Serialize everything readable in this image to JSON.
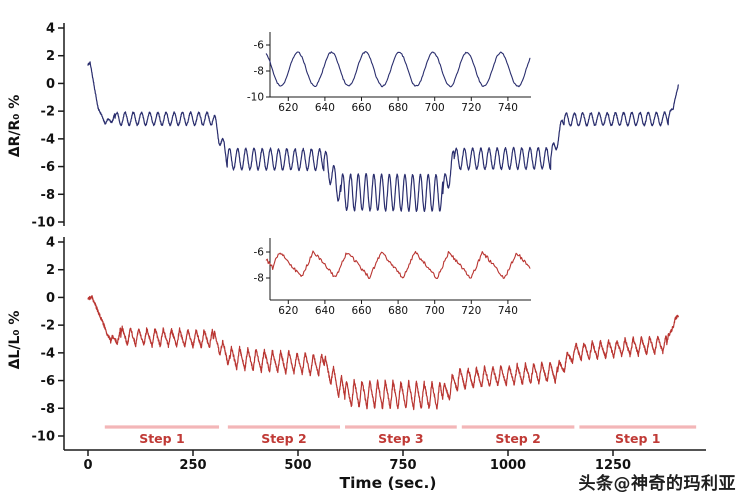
{
  "watermark": "头条@神奇的玛利亚",
  "chart_data": {
    "type": "line",
    "title": "",
    "xlabel": "Time (sec.)",
    "x_ticks": [
      0,
      250,
      500,
      750,
      1000,
      1250
    ],
    "x_range": [
      -40,
      1460
    ],
    "grid": false,
    "legend": "none",
    "axis_color": "#1a1a1a",
    "step_bar_color": "#f3b6b8",
    "step_label_color": "#c03a36",
    "steps": [
      {
        "label": "Step 1",
        "t": [
          40,
          312
        ]
      },
      {
        "label": "Step 2",
        "t": [
          333,
          600
        ]
      },
      {
        "label": "Step 3",
        "t": [
          612,
          878
        ]
      },
      {
        "label": "Step 2",
        "t": [
          890,
          1158
        ]
      },
      {
        "label": "Step 1",
        "t": [
          1170,
          1448
        ]
      }
    ],
    "panels": [
      {
        "name": "resistance",
        "ylabel": "ΔR/R₀ %",
        "color": "#2a2e6e",
        "y_ticks": [
          4,
          2,
          0,
          -2,
          -4,
          -6,
          -8,
          -10
        ],
        "y_range": [
          -10,
          4
        ],
        "series": {
          "shape": "sine",
          "noise": 0.06,
          "seed": 7,
          "segments": [
            {
              "t": [
                0,
                5
              ],
              "base": [
                1.35,
                1.5
              ],
              "amp": [
                0,
                0
              ],
              "period": 19.5
            },
            {
              "t": [
                5,
                24
              ],
              "base": [
                1.5,
                -1.8
              ],
              "amp": [
                0,
                0
              ],
              "period": 19.5
            },
            {
              "t": [
                24,
                42
              ],
              "base": [
                -1.8,
                -2.9
              ],
              "amp": [
                0,
                0.1
              ],
              "period": 19.5
            },
            {
              "t": [
                42,
                64
              ],
              "base": [
                -2.9,
                -2.35
              ],
              "amp": [
                0.15,
                0.3
              ],
              "period": 19.5
            },
            {
              "t": [
                64,
                298
              ],
              "base": [
                -2.55,
                -2.55
              ],
              "amp": [
                0.45,
                0.45
              ],
              "period": 19.5
            },
            {
              "t": [
                298,
                332
              ],
              "base": [
                -2.55,
                -5.45
              ],
              "amp": [
                0.55,
                0.6
              ],
              "period": 19.5
            },
            {
              "t": [
                332,
                562
              ],
              "base": [
                -5.45,
                -5.5
              ],
              "amp": [
                0.75,
                0.75
              ],
              "period": 19.5
            },
            {
              "t": [
                562,
                602
              ],
              "base": [
                -5.5,
                -7.85
              ],
              "amp": [
                0.8,
                1.05
              ],
              "period": 19
            },
            {
              "t": [
                602,
                845
              ],
              "base": [
                -7.85,
                -7.9
              ],
              "amp": [
                1.3,
                1.3
              ],
              "period": 18.5
            },
            {
              "t": [
                845,
                872
              ],
              "base": [
                -7.9,
                -5.45
              ],
              "amp": [
                0.95,
                0.8
              ],
              "period": 19
            },
            {
              "t": [
                872,
                1102
              ],
              "base": [
                -5.45,
                -5.4
              ],
              "amp": [
                0.75,
                0.75
              ],
              "period": 19.5
            },
            {
              "t": [
                1102,
                1134
              ],
              "base": [
                -5.4,
                -2.6
              ],
              "amp": [
                0.6,
                0.5
              ],
              "period": 19.5
            },
            {
              "t": [
                1134,
                1382
              ],
              "base": [
                -2.6,
                -2.55
              ],
              "amp": [
                0.45,
                0.45
              ],
              "period": 19.5
            },
            {
              "t": [
                1382,
                1394
              ],
              "base": [
                -2.55,
                -1.7
              ],
              "amp": [
                0.3,
                0.15
              ],
              "period": 19.5
            },
            {
              "t": [
                1394,
                1406
              ],
              "base": [
                -1.7,
                -0.1
              ],
              "amp": [
                0.12,
                0
              ],
              "period": 19.5
            }
          ]
        }
      },
      {
        "name": "strain",
        "ylabel": "ΔL/L₀ %",
        "color": "#b93531",
        "y_ticks": [
          4,
          2,
          0,
          -2,
          -4,
          -6,
          -8,
          -10
        ],
        "y_range": [
          -10,
          4
        ],
        "series": {
          "shape": "saw",
          "noise": 0.13,
          "seed": 99,
          "segments": [
            {
              "t": [
                0,
                10
              ],
              "base": [
                -0.05,
                0
              ],
              "amp": [
                0,
                0
              ],
              "period": 19.5
            },
            {
              "t": [
                10,
                54
              ],
              "base": [
                0,
                -3.2
              ],
              "amp": [
                0,
                0.1
              ],
              "period": 19.5
            },
            {
              "t": [
                54,
                78
              ],
              "base": [
                -3.2,
                -2.75
              ],
              "amp": [
                0.25,
                0.5
              ],
              "period": 19.5
            },
            {
              "t": [
                78,
                298
              ],
              "base": [
                -2.8,
                -3.0
              ],
              "amp": [
                0.62,
                0.62
              ],
              "period": 19.5
            },
            {
              "t": [
                298,
                338
              ],
              "base": [
                -3.0,
                -4.35
              ],
              "amp": [
                0.55,
                0.7
              ],
              "period": 19.5
            },
            {
              "t": [
                338,
                562
              ],
              "base": [
                -4.35,
                -4.9
              ],
              "amp": [
                0.78,
                0.78
              ],
              "period": 19.5
            },
            {
              "t": [
                562,
                612
              ],
              "base": [
                -4.9,
                -6.95
              ],
              "amp": [
                0.7,
                0.9
              ],
              "period": 19
            },
            {
              "t": [
                612,
                845
              ],
              "base": [
                -6.95,
                -7.1
              ],
              "amp": [
                1.0,
                1.0
              ],
              "period": 18.5
            },
            {
              "t": [
                845,
                882
              ],
              "base": [
                -7.1,
                -5.9
              ],
              "amp": [
                0.85,
                0.75
              ],
              "period": 19
            },
            {
              "t": [
                882,
                1118
              ],
              "base": [
                -5.9,
                -5.35
              ],
              "amp": [
                0.72,
                0.72
              ],
              "period": 19.5
            },
            {
              "t": [
                1118,
                1158
              ],
              "base": [
                -5.35,
                -3.95
              ],
              "amp": [
                0.6,
                0.6
              ],
              "period": 19.5
            },
            {
              "t": [
                1158,
                1378
              ],
              "base": [
                -3.95,
                -3.35
              ],
              "amp": [
                0.62,
                0.62
              ],
              "period": 19.5
            },
            {
              "t": [
                1378,
                1398
              ],
              "base": [
                -3.35,
                -1.55
              ],
              "amp": [
                0.3,
                0.12
              ],
              "period": 19.5
            },
            {
              "t": [
                1398,
                1406
              ],
              "base": [
                -1.55,
                -1.3
              ],
              "amp": [
                0.06,
                0
              ],
              "period": 19.5
            }
          ]
        }
      }
    ],
    "insets": [
      {
        "panel": "resistance",
        "x_range": [
          608,
          752
        ],
        "x_ticks": [
          620,
          640,
          660,
          680,
          700,
          720,
          740
        ],
        "y_ticks": [
          -6,
          -8,
          -10
        ]
      },
      {
        "panel": "strain",
        "x_range": [
          608,
          752
        ],
        "x_ticks": [
          620,
          640,
          660,
          680,
          700,
          720,
          740
        ],
        "y_ticks": [
          -6,
          -8
        ]
      }
    ]
  }
}
